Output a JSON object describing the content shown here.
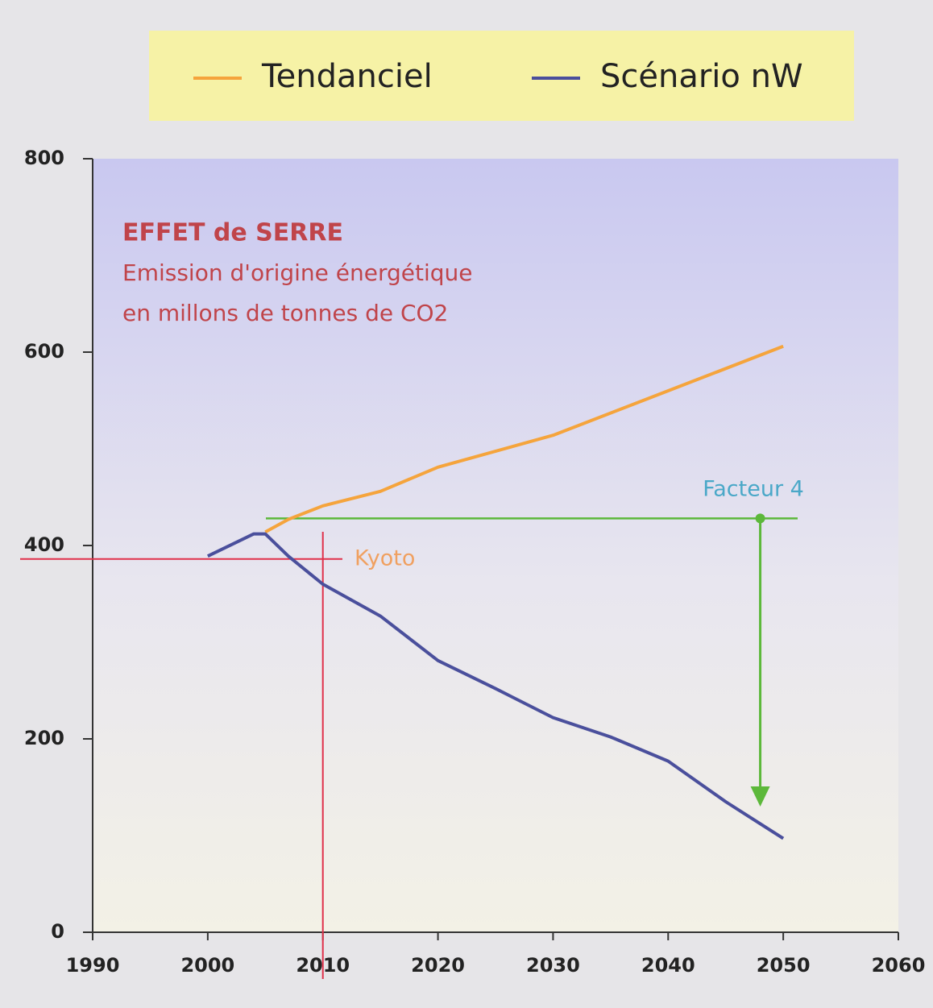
{
  "chart_data": {
    "type": "line",
    "title": "EFFET de SERRE",
    "subtitle": [
      "Emission d'origine énergétique",
      "en millons de tonnes de CO2"
    ],
    "series": [
      {
        "name": "Tendanciel",
        "color": "#f5a43c",
        "x": [
          2005,
          2007,
          2010,
          2015,
          2020,
          2030,
          2040,
          2050
        ],
        "values": [
          414,
          427,
          441,
          456,
          481,
          514,
          560,
          606
        ]
      },
      {
        "name": "Scénario nW",
        "color": "#4a4f9c",
        "x": [
          2000,
          2004,
          2005,
          2007,
          2010,
          2015,
          2020,
          2025,
          2030,
          2035,
          2040,
          2045,
          2050
        ],
        "values": [
          389,
          412,
          412,
          389,
          360,
          327,
          281,
          252,
          222,
          202,
          177,
          135,
          97
        ]
      }
    ],
    "xlim": [
      1990,
      2060
    ],
    "xticks": [
      1990,
      2000,
      2010,
      2020,
      2030,
      2040,
      2050,
      2060
    ],
    "ylim": [
      0,
      800
    ],
    "yticks": [
      0,
      200,
      400,
      600,
      800
    ],
    "kyoto": {
      "text": "Kyoto",
      "x": 2010,
      "y": 386,
      "color": "#e0304a"
    },
    "facteur": {
      "text": "Facteur 4",
      "y": 428,
      "x": 2048,
      "to": 130,
      "color": "#5cb83a"
    }
  }
}
